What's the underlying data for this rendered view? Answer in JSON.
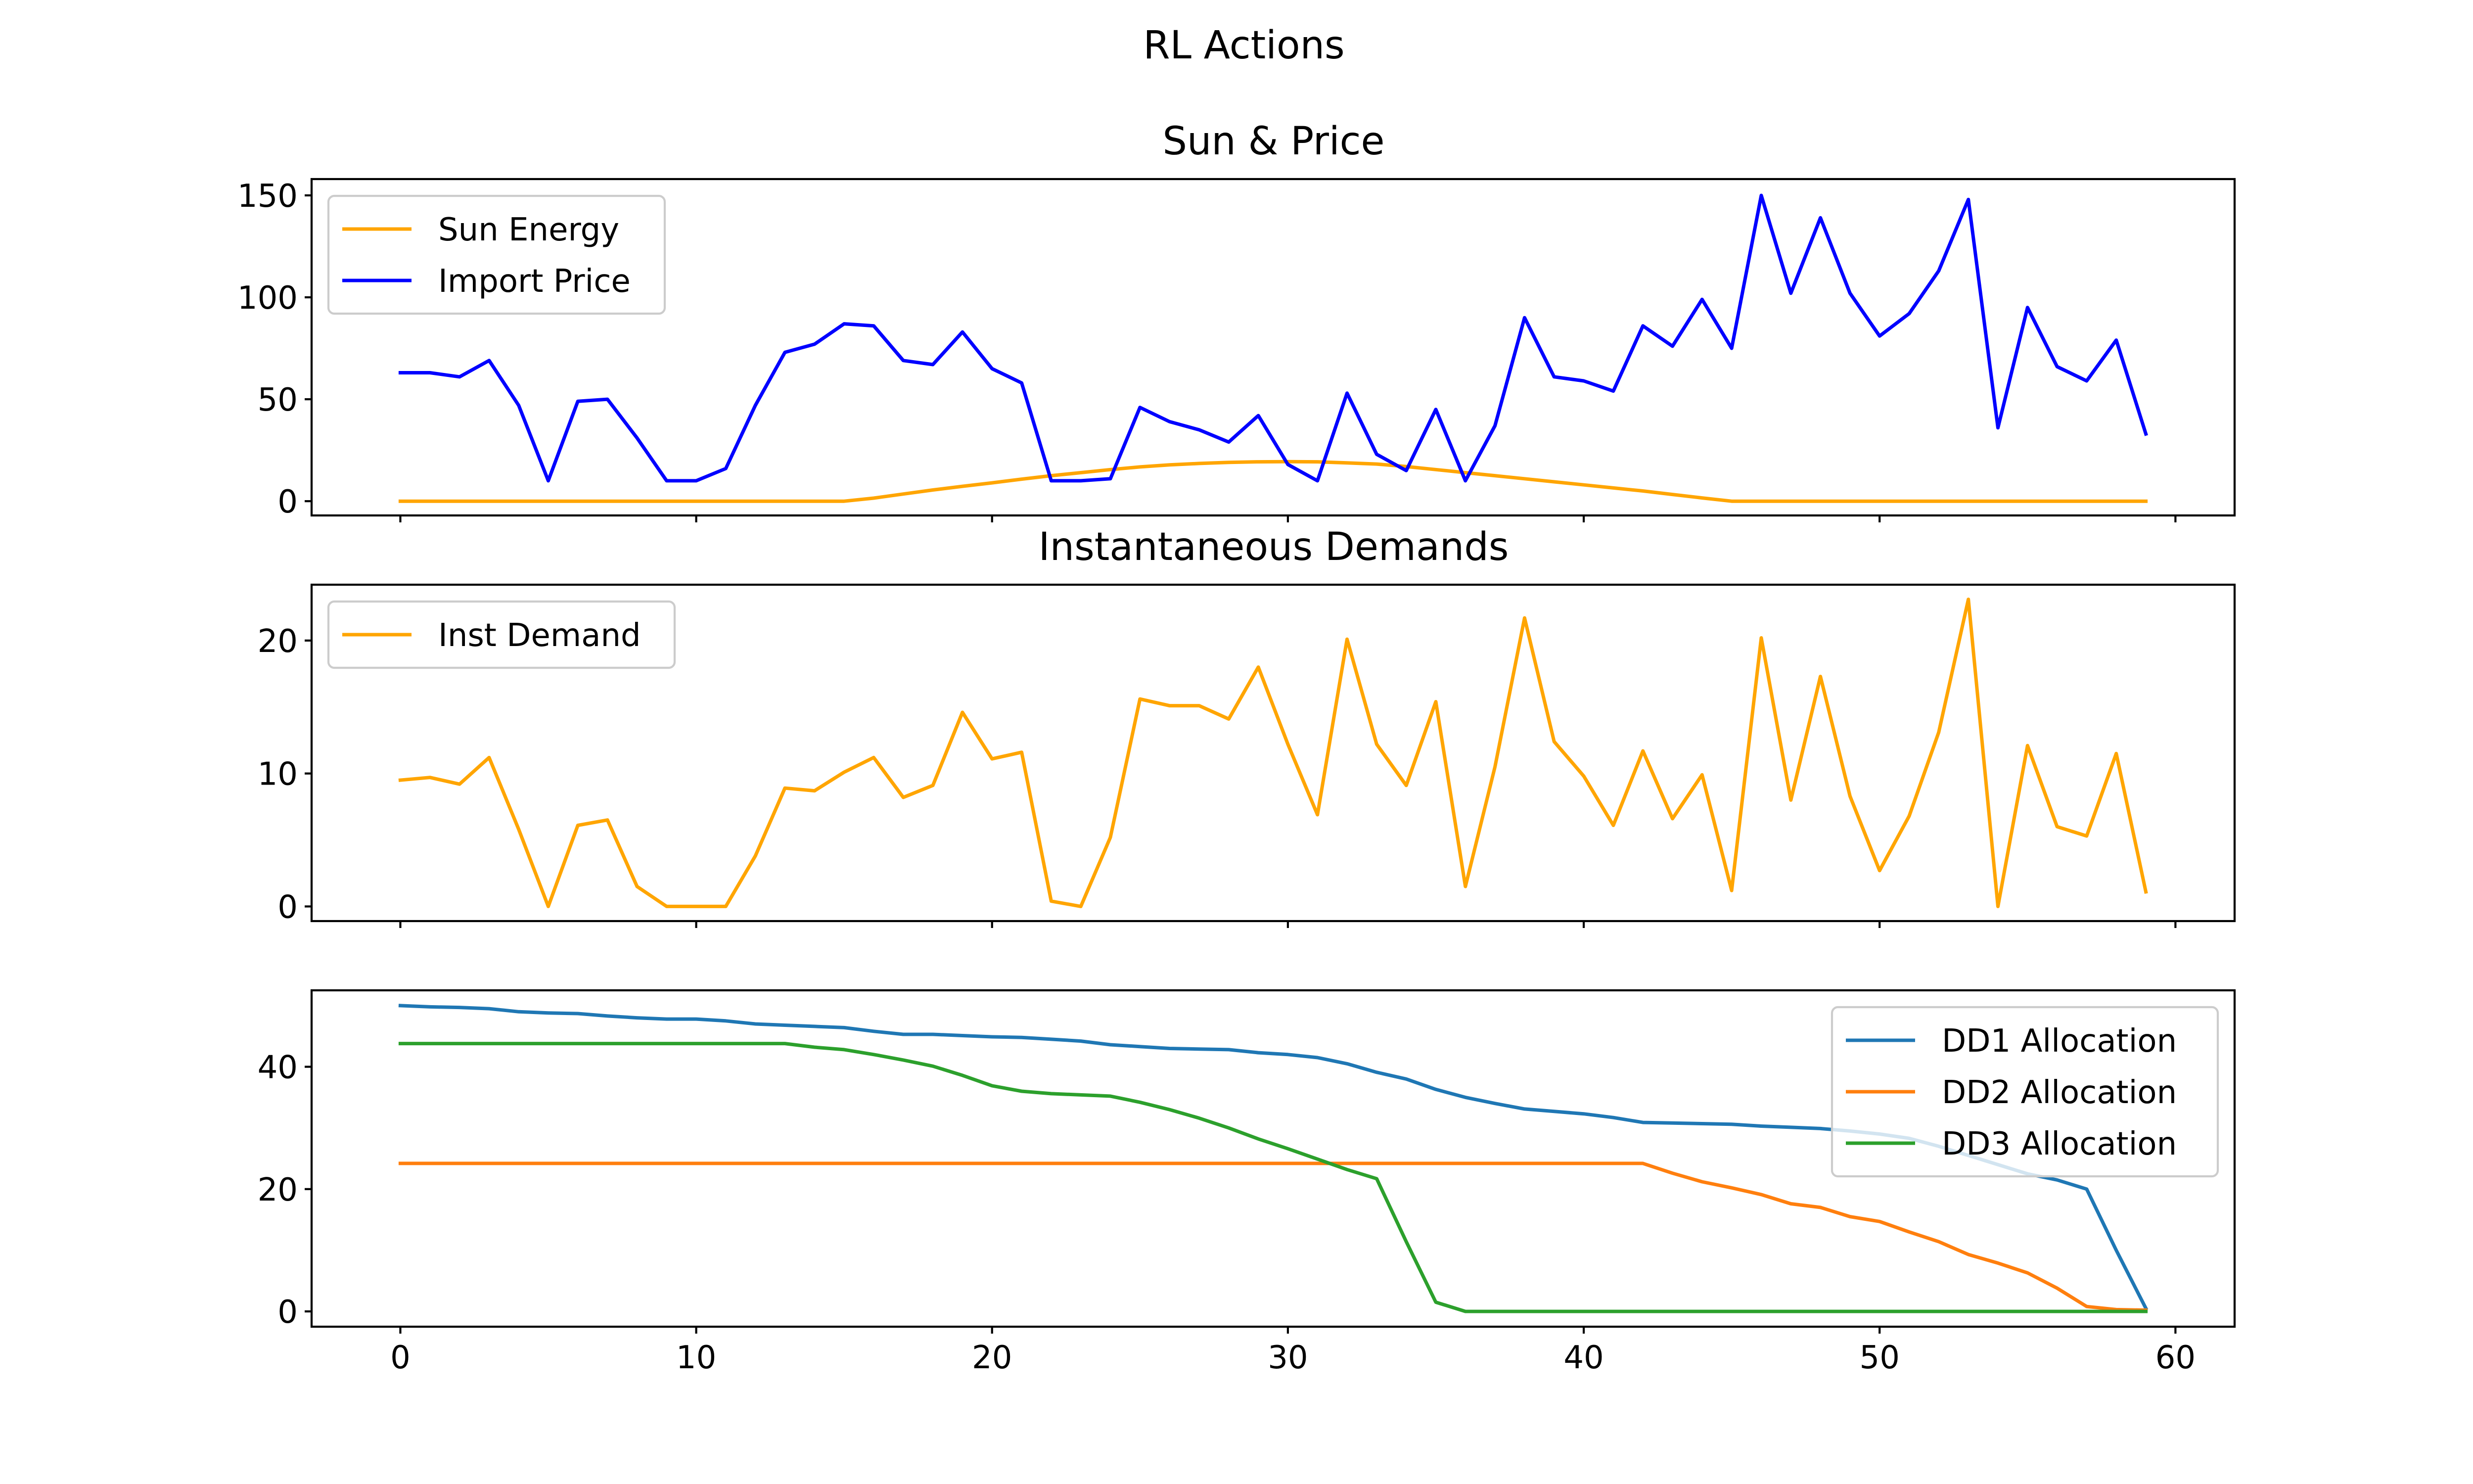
{
  "figure_title": "RL Actions",
  "chart_data": [
    {
      "type": "line",
      "title": "Sun & Price",
      "xlabel": "",
      "ylabel": "",
      "xlim": [
        -3,
        62
      ],
      "ylim": [
        -7,
        158
      ],
      "xticks": [
        0,
        10,
        20,
        30,
        40,
        50,
        60
      ],
      "yticks": [
        0,
        50,
        100,
        150
      ],
      "ytick_labels": [
        "0",
        "50",
        "100",
        "150"
      ],
      "show_xtick_labels": false,
      "grid": false,
      "legend": "upper-left",
      "series": [
        {
          "name": "Sun Energy",
          "color": "#ffa500",
          "values": [
            0,
            0,
            0,
            0,
            0,
            0,
            0,
            0,
            0,
            0,
            0,
            0,
            0,
            0,
            0,
            0,
            1.5,
            3.5,
            5.5,
            7.3,
            9,
            10.8,
            12.5,
            14,
            15.5,
            16.8,
            17.8,
            18.5,
            19,
            19.3,
            19.4,
            19.3,
            18.8,
            18.2,
            17,
            15.5,
            14,
            12.5,
            11,
            9.5,
            8,
            6.5,
            5,
            3.3,
            1.6,
            0,
            0,
            0,
            0,
            0,
            0,
            0,
            0,
            0,
            0,
            0,
            0,
            0,
            0,
            0
          ]
        },
        {
          "name": "Import Price",
          "color": "#0000ff",
          "values": [
            63,
            63,
            61,
            69,
            47,
            10,
            49,
            50,
            31,
            10,
            10,
            16,
            47,
            73,
            77,
            87,
            86,
            69,
            67,
            83,
            65,
            58,
            10,
            10,
            11,
            46,
            39,
            35,
            29,
            42,
            18,
            10,
            53,
            23,
            15,
            45,
            10,
            37,
            90,
            61,
            59,
            54,
            86,
            76,
            99,
            75,
            150,
            102,
            139,
            102,
            81,
            92,
            113,
            148,
            36,
            95,
            66,
            59,
            79,
            33
          ]
        }
      ]
    },
    {
      "type": "line",
      "title": "Instantaneous Demands",
      "xlabel": "",
      "ylabel": "",
      "xlim": [
        -3,
        62
      ],
      "ylim": [
        -1.1,
        24.2
      ],
      "xticks": [
        0,
        10,
        20,
        30,
        40,
        50,
        60
      ],
      "yticks": [
        0,
        10,
        20
      ],
      "ytick_labels": [
        "0",
        "10",
        "20"
      ],
      "show_xtick_labels": false,
      "grid": false,
      "legend": "upper-left",
      "series": [
        {
          "name": "Inst Demand",
          "color": "#ffa500",
          "values": [
            9.5,
            9.7,
            9.2,
            11.2,
            5.8,
            0,
            6.1,
            6.5,
            1.5,
            0,
            0,
            0,
            3.8,
            8.9,
            8.7,
            10.1,
            11.2,
            8.2,
            9.1,
            14.6,
            11.1,
            11.6,
            0.4,
            0,
            5.2,
            15.6,
            15.1,
            15.1,
            14.1,
            18,
            12.2,
            6.9,
            20.1,
            12.2,
            9.1,
            15.4,
            1.5,
            10.5,
            21.7,
            12.4,
            9.8,
            6.1,
            11.7,
            6.6,
            9.9,
            1.2,
            20.2,
            8,
            17.3,
            8.3,
            2.7,
            6.8,
            13.1,
            23.1,
            0,
            12.1,
            6,
            5.3,
            11.5,
            1.1
          ]
        }
      ]
    },
    {
      "type": "line",
      "title": "",
      "xlabel": "",
      "ylabel": "",
      "xlim": [
        -3,
        62
      ],
      "ylim": [
        -2.5,
        52.5
      ],
      "xticks": [
        0,
        10,
        20,
        30,
        40,
        50,
        60
      ],
      "xtick_labels": [
        "0",
        "10",
        "20",
        "30",
        "40",
        "50",
        "60"
      ],
      "yticks": [
        0,
        20,
        40
      ],
      "ytick_labels": [
        "0",
        "20",
        "40"
      ],
      "show_xtick_labels": true,
      "grid": false,
      "legend": "upper-right",
      "series": [
        {
          "name": "DD1 Allocation",
          "color": "#1f77b4",
          "values": [
            50,
            49.8,
            49.7,
            49.5,
            49,
            48.8,
            48.7,
            48.3,
            48,
            47.8,
            47.8,
            47.5,
            47,
            46.8,
            46.6,
            46.4,
            45.8,
            45.3,
            45.3,
            45.1,
            44.9,
            44.8,
            44.5,
            44.2,
            43.6,
            43.3,
            43,
            42.9,
            42.8,
            42.3,
            42,
            41.5,
            40.5,
            39.1,
            38,
            36.3,
            35,
            34,
            33.1,
            32.7,
            32.3,
            31.7,
            30.9,
            30.8,
            30.7,
            30.6,
            30.3,
            30.1,
            29.9,
            29.5,
            29,
            28.3,
            27,
            25.5,
            24,
            22.5,
            21.5,
            20,
            10,
            0.5
          ]
        },
        {
          "name": "DD2 Allocation",
          "color": "#ff7f0e",
          "values": [
            24.2,
            24.2,
            24.2,
            24.2,
            24.2,
            24.2,
            24.2,
            24.2,
            24.2,
            24.2,
            24.2,
            24.2,
            24.2,
            24.2,
            24.2,
            24.2,
            24.2,
            24.2,
            24.2,
            24.2,
            24.2,
            24.2,
            24.2,
            24.2,
            24.2,
            24.2,
            24.2,
            24.2,
            24.2,
            24.2,
            24.2,
            24.2,
            24.2,
            24.2,
            24.2,
            24.2,
            24.2,
            24.2,
            24.2,
            24.2,
            24.2,
            24.2,
            24.2,
            22.6,
            21.2,
            20.2,
            19.1,
            17.6,
            17,
            15.5,
            14.7,
            13,
            11.4,
            9.3,
            7.9,
            6.3,
            3.8,
            0.8,
            0.3,
            0.2
          ]
        },
        {
          "name": "DD3 Allocation",
          "color": "#2ca02c",
          "values": [
            43.8,
            43.8,
            43.8,
            43.8,
            43.8,
            43.8,
            43.8,
            43.8,
            43.8,
            43.8,
            43.8,
            43.8,
            43.8,
            43.8,
            43.2,
            42.8,
            42,
            41.1,
            40.1,
            38.6,
            36.9,
            36,
            35.6,
            35.4,
            35.2,
            34.2,
            33,
            31.6,
            30,
            28.2,
            26.6,
            24.9,
            23.2,
            21.7,
            11.4,
            1.5,
            0,
            0,
            0,
            0,
            0,
            0,
            0,
            0,
            0,
            0,
            0,
            0,
            0,
            0,
            0,
            0,
            0,
            0,
            0,
            0,
            0,
            0,
            0,
            0
          ]
        }
      ]
    }
  ]
}
